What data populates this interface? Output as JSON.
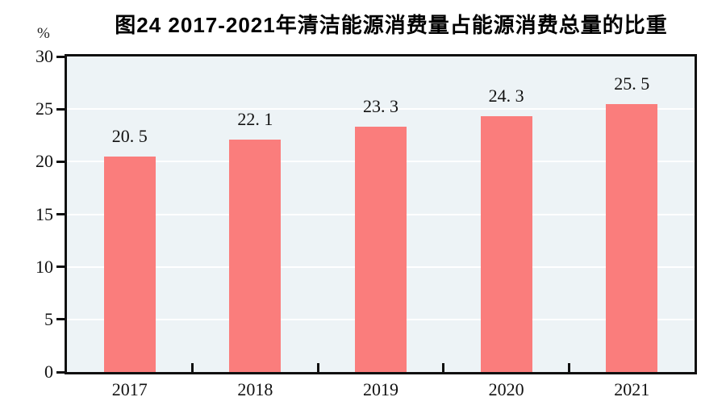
{
  "chart_data": {
    "type": "bar",
    "title": "图24  2017-2021年清洁能源消费量占能源消费总量的比重",
    "ylabel": "%",
    "xlabel": "",
    "categories": [
      "2017",
      "2018",
      "2019",
      "2020",
      "2021"
    ],
    "values": [
      20.5,
      22.1,
      23.3,
      24.3,
      25.5
    ],
    "value_labels": [
      "20. 5",
      "22. 1",
      "23. 3",
      "24. 3",
      "25. 5"
    ],
    "ylim": [
      0,
      30
    ],
    "yticks": [
      0,
      5,
      10,
      15,
      20,
      25,
      30
    ],
    "gridlines": [
      5,
      10,
      15,
      20,
      25
    ],
    "grid": true,
    "legend": "none",
    "colors": {
      "bar": "#FA7D7C",
      "plot_background": "#EDF3F6",
      "gridline": "#FFFFFF",
      "axis": "#101010",
      "text": "#111111"
    }
  }
}
